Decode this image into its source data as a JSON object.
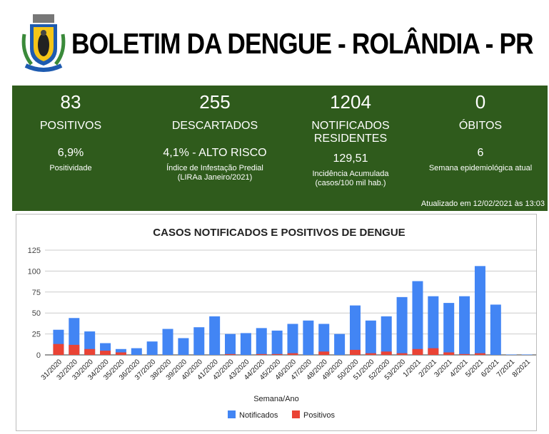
{
  "header": {
    "title": "BOLETIM DA DENGUE - ROLÂNDIA - PR",
    "logo_text": "ROLÂNDIA 1934 1944"
  },
  "stats": [
    {
      "value": "83",
      "label": "POSITIVOS",
      "sub_value": "6,9%",
      "sub_label": "Positividade"
    },
    {
      "value": "255",
      "label": "DESCARTADOS",
      "sub_value": "4,1% - ALTO RISCO",
      "sub_label": "Índice de Infestação Predial (LIRAa Janeiro/2021)"
    },
    {
      "value": "1204",
      "label": "NOTIFICADOS RESIDENTES",
      "sub_value": "129,51",
      "sub_label": "Incidência Acumulada (casos/100 mil hab.)"
    },
    {
      "value": "0",
      "label": "ÓBITOS",
      "sub_value": "6",
      "sub_label": "Semana epidemiológica atual"
    }
  ],
  "updated": "Atualizado em 12/02/2021 às 13:03",
  "colors": {
    "panel": "#2f5b1c",
    "notificados": "#4285f4",
    "positivos": "#ea4335"
  },
  "chart_data": {
    "type": "bar",
    "title": "CASOS NOTIFICADOS E POSITIVOS DE DENGUE",
    "xlabel": "Semana/Ano",
    "ylabel": "",
    "ylim": [
      0,
      125
    ],
    "yticks": [
      0,
      25,
      50,
      75,
      100,
      125
    ],
    "legend": "bottom",
    "categories": [
      "31/2020",
      "32/2020",
      "33/2020",
      "34/2020",
      "35/2020",
      "36/2020",
      "37/2020",
      "38/2020",
      "39/2020",
      "40/2020",
      "41/2020",
      "42/2020",
      "43/2020",
      "44/2020",
      "45/2020",
      "46/2020",
      "47/2020",
      "48/2020",
      "49/2020",
      "50/2020",
      "51/2020",
      "52/2020",
      "53/2020",
      "1/2021",
      "2/2021",
      "3/2021",
      "4/2021",
      "5/2021",
      "6/2021",
      "7/2021",
      "8/2021"
    ],
    "series": [
      {
        "name": "Notificados",
        "values": [
          30,
          44,
          28,
          14,
          7,
          8,
          16,
          31,
          20,
          33,
          46,
          25,
          26,
          32,
          29,
          37,
          41,
          37,
          25,
          59,
          41,
          46,
          69,
          88,
          70,
          62,
          70,
          106,
          60,
          0.5,
          0.5
        ]
      },
      {
        "name": "Positivos",
        "values": [
          13,
          12,
          7,
          5,
          3,
          0,
          0,
          0,
          0,
          0,
          0,
          1,
          0,
          1,
          1,
          2,
          0,
          4,
          0,
          6,
          2,
          4,
          2,
          7,
          8,
          3,
          1,
          2,
          0,
          0,
          0
        ]
      }
    ]
  }
}
